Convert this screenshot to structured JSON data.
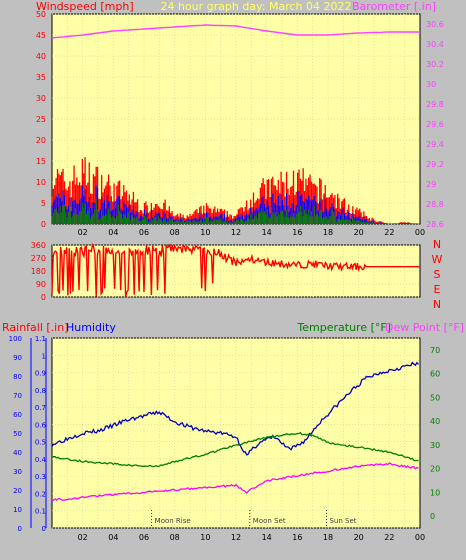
{
  "header": {
    "left_label": "Windspeed [mph]",
    "center_title": "24 hour graph day:  March 04 2022",
    "right_label": "Barometer [.in]"
  },
  "direction_labels": [
    "N",
    "W",
    "S",
    "E",
    "N"
  ],
  "bottom_labels": {
    "rainfall": "Rainfall [.in]",
    "humidity": "Humidity",
    "temperature": "Temperature [°F]",
    "dewpoint": "Dew Point [°F]"
  },
  "events": [
    {
      "label": "Moon Rise",
      "hour": 6.5
    },
    {
      "label": "Moon Set",
      "hour": 12.9
    },
    {
      "label": "Sun Set",
      "hour": 17.9
    }
  ],
  "colors": {
    "plot_bg": "#ffffa8",
    "wind": "#ff0000",
    "gust_blue": "#0000ff",
    "gust_green": "#008000",
    "barometer": "#ff40ff",
    "humidity": "#0000c0",
    "temperature": "#008000",
    "dewpoint": "#ff00ff"
  },
  "chart_data": [
    {
      "type": "line",
      "name": "wind-barometer",
      "x_ticks": [
        "02",
        "04",
        "06",
        "08",
        "10",
        "12",
        "14",
        "16",
        "18",
        "20",
        "22",
        "00"
      ],
      "left_axis": {
        "label": "Windspeed [mph]",
        "range": [
          0,
          50
        ],
        "ticks": [
          0,
          5,
          10,
          15,
          20,
          25,
          30,
          35,
          40,
          45,
          50
        ]
      },
      "right_axis": {
        "label": "Barometer [.in]",
        "range": [
          28.6,
          30.7
        ],
        "ticks": [
          "28.6",
          "28.8",
          "29",
          "29.2",
          "29.4",
          "29.6",
          "29.8",
          "30",
          "30.2",
          "30.4",
          "30.6"
        ]
      },
      "series": [
        {
          "name": "Windspeed [mph]",
          "hours": [
            0,
            1,
            2,
            3,
            4,
            5,
            6,
            7,
            8,
            9,
            10,
            11,
            12,
            13,
            14,
            15,
            16,
            17,
            18,
            19,
            20,
            21,
            22,
            23,
            24
          ],
          "values": [
            12,
            10,
            13,
            11,
            9,
            7,
            4,
            6,
            2,
            2,
            4,
            3,
            2,
            7,
            9,
            10,
            11,
            9,
            8,
            5,
            3,
            1,
            0,
            0.5,
            0
          ]
        },
        {
          "name": "Barometer [.in]",
          "hours": [
            0,
            2,
            4,
            6,
            8,
            10,
            12,
            14,
            16,
            18,
            20,
            22,
            24
          ],
          "values": [
            30.46,
            30.49,
            30.53,
            30.55,
            30.57,
            30.59,
            30.58,
            30.53,
            30.49,
            30.49,
            30.51,
            30.52,
            30.52
          ]
        }
      ]
    },
    {
      "type": "scatter",
      "name": "wind-direction",
      "y_ticks": [
        0,
        90,
        180,
        270,
        360
      ],
      "range": [
        0,
        360
      ],
      "hours": [
        0,
        1,
        2,
        3,
        4,
        5,
        6,
        7,
        8,
        9,
        10,
        11,
        12,
        13,
        14,
        15,
        16,
        17,
        18,
        19,
        20,
        21,
        22,
        23,
        24
      ],
      "values": [
        330,
        340,
        200,
        320,
        100,
        330,
        300,
        350,
        340,
        330,
        320,
        300,
        230,
        260,
        240,
        230,
        220,
        230,
        215,
        210,
        210,
        210,
        210,
        210,
        210
      ]
    },
    {
      "type": "line",
      "name": "humidity-temperature",
      "humidity_axis": {
        "label": "Humidity",
        "range": [
          0,
          100
        ],
        "ticks": [
          0,
          10,
          20,
          30,
          40,
          50,
          60,
          70,
          80,
          90,
          100
        ]
      },
      "rain_axis": {
        "label": "Rainfall [.in]",
        "range": [
          0,
          1.1
        ],
        "ticks": [
          "0",
          "0.1",
          "0.2",
          "0.3",
          "0.4",
          "0.5",
          "0.6",
          "0.7",
          "0.8",
          "0.9",
          "1",
          "1.1"
        ]
      },
      "temp_axis": {
        "label": "Temperature [°F]",
        "range": [
          -5,
          75
        ],
        "ticks": [
          0,
          10,
          20,
          30,
          40,
          50,
          60,
          70
        ]
      },
      "series": [
        {
          "name": "Humidity",
          "hours": [
            0,
            1,
            2,
            3,
            4,
            5,
            6,
            7,
            8,
            9,
            10,
            11,
            12,
            12.7,
            13.5,
            14.5,
            15.5,
            16.5,
            17.5,
            18.5,
            19.5,
            20.5,
            21.5,
            22.5,
            23.5,
            24
          ],
          "values": [
            44,
            47,
            50,
            51,
            54,
            57,
            59,
            61,
            56,
            53,
            51,
            50,
            48,
            38,
            45,
            48,
            41,
            46,
            56,
            64,
            72,
            79,
            82,
            84,
            86,
            86
          ]
        },
        {
          "name": "Temperature [°F]",
          "hours": [
            0,
            2,
            4,
            6,
            7,
            8,
            10,
            12,
            14,
            16,
            17,
            18,
            20,
            22,
            24
          ],
          "values": [
            25,
            23,
            22,
            21,
            21,
            23,
            26,
            30,
            33,
            35,
            34,
            31,
            29,
            27,
            23
          ]
        },
        {
          "name": "Dew Point [°F]",
          "hours": [
            0,
            1,
            2,
            4,
            6,
            8,
            10,
            12,
            12.7,
            14,
            16,
            18,
            20,
            22,
            24
          ],
          "values": [
            7,
            7,
            8,
            9,
            10,
            11,
            12,
            13,
            10,
            15,
            17,
            19,
            21,
            22,
            20
          ]
        }
      ]
    }
  ]
}
